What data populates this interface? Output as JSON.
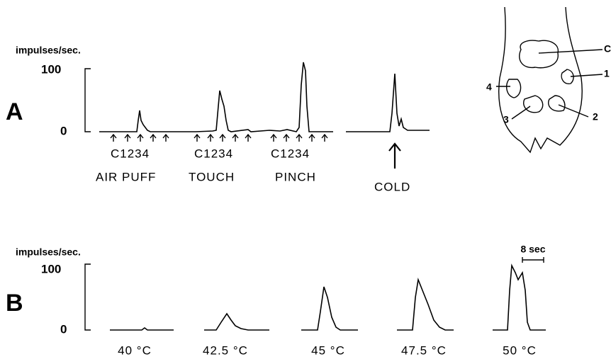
{
  "panel_a": {
    "label": "A",
    "y_label": "impulses/sec.",
    "y_top": "100",
    "y_bottom": "0",
    "stimulus_numbers": [
      "C1234",
      "C1234",
      "C1234"
    ],
    "stimuli": [
      "AIR PUFF",
      "TOUCH",
      "PINCH",
      "COLD"
    ],
    "diagram_labels": [
      "C",
      "1",
      "2",
      "3",
      "4"
    ]
  },
  "panel_b": {
    "label": "B",
    "y_label": "impulses/sec.",
    "y_top": "100",
    "y_bottom": "0",
    "time_scale": "8 sec",
    "temperatures": [
      "40 °C",
      "42.5 °C",
      "45 °C",
      "47.5 °C",
      "50 °C"
    ]
  }
}
